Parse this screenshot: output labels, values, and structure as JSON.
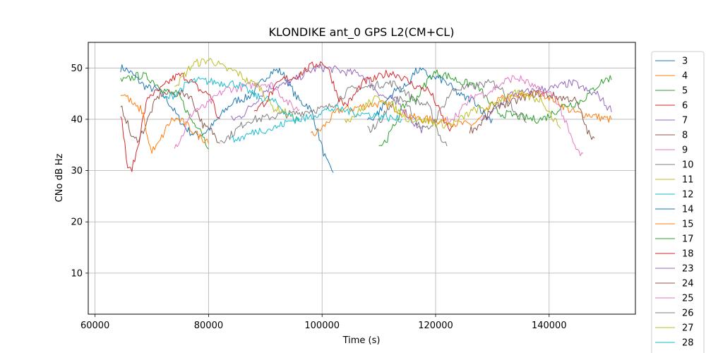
{
  "chart_data": {
    "type": "line",
    "title": "KLONDIKE ant_0 GPS L2(CM+CL)",
    "xlabel": "Time (s)",
    "ylabel": "CNo dB Hz",
    "xlim": [
      58800,
      155200
    ],
    "ylim": [
      2,
      55
    ],
    "xticks": [
      60000,
      80000,
      100000,
      120000,
      140000
    ],
    "yticks": [
      10,
      20,
      30,
      40,
      50
    ],
    "grid": true,
    "legend": "right-outside",
    "colors": [
      "#1f77b4",
      "#ff7f0e",
      "#2ca02c",
      "#d62728",
      "#9467bd",
      "#8c564b",
      "#e377c2",
      "#7f7f7f",
      "#bcbd22",
      "#17becf"
    ],
    "series": [
      {
        "name": "3",
        "x": [
          64500,
          70000,
          78000,
          86000,
          92000,
          97000,
          102000
        ],
        "y": [
          50,
          46,
          37,
          44,
          49.5,
          43,
          30
        ]
      },
      {
        "name": "4",
        "x": [
          98000,
          104000,
          110000,
          118000,
          126000,
          132000,
          138000,
          146000,
          151000
        ],
        "y": [
          37,
          42,
          43,
          40,
          39,
          44,
          45,
          41,
          40
        ]
      },
      {
        "name": "5",
        "x": [
          64500,
          68000,
          74000,
          78000,
          80000
        ],
        "y": [
          47.5,
          48.5,
          45,
          39,
          35
        ]
      },
      {
        "name": "6",
        "x": [
          64500,
          66000,
          70000,
          75000,
          80000,
          82000
        ],
        "y": [
          40,
          30,
          45,
          48.5,
          45,
          40
        ]
      },
      {
        "name": "7",
        "x": [
          84000,
          92000,
          100000,
          106000,
          112000,
          118000
        ],
        "y": [
          40,
          46.5,
          50,
          49,
          44,
          38
        ]
      },
      {
        "name": "8",
        "x": [
          64500,
          67000,
          72000,
          76000,
          80000,
          82000
        ],
        "y": [
          42,
          36,
          45,
          45,
          38,
          36
        ]
      },
      {
        "name": "9",
        "x": [
          74000,
          78000,
          84000,
          90000,
          96000
        ],
        "y": [
          35,
          42,
          46,
          47,
          42
        ]
      },
      {
        "name": "10",
        "x": [
          82000,
          88000,
          94000,
          100000,
          106000,
          112000,
          118000,
          122000
        ],
        "y": [
          36,
          40,
          41,
          42,
          46,
          47,
          43,
          35
        ]
      },
      {
        "name": "11",
        "x": [
          74000,
          78000,
          80000,
          84000,
          88000,
          92000,
          96000
        ],
        "y": [
          47,
          51,
          51.5,
          49.5,
          47,
          42,
          40
        ]
      },
      {
        "name": "12",
        "x": [
          72000,
          78000,
          84000,
          90000,
          96000
        ],
        "y": [
          44,
          47.5,
          47,
          44,
          40
        ]
      },
      {
        "name": "14",
        "x": [
          108000,
          114000,
          117000,
          120000,
          126000,
          130000
        ],
        "y": [
          40,
          46,
          49.5,
          48,
          44,
          40
        ]
      },
      {
        "name": "15",
        "x": [
          64500,
          68000,
          70000,
          74000,
          80000
        ],
        "y": [
          45,
          42,
          34,
          40,
          36
        ]
      },
      {
        "name": "17",
        "x": [
          110000,
          116000,
          120000,
          126000,
          132000,
          138000,
          144000,
          151000
        ],
        "y": [
          35,
          44,
          49,
          47,
          41,
          40,
          43,
          48
        ]
      },
      {
        "name": "18",
        "x": [
          88000,
          94000,
          100000,
          104000,
          108000,
          112000,
          118000,
          123000
        ],
        "y": [
          42,
          48,
          51,
          43,
          47.5,
          49,
          46,
          38
        ]
      },
      {
        "name": "23",
        "x": [
          128000,
          134000,
          140000,
          144000,
          148000,
          151000
        ],
        "y": [
          40,
          45,
          46,
          47,
          45,
          42
        ]
      },
      {
        "name": "24",
        "x": [
          126000,
          132000,
          138000,
          144000,
          148000
        ],
        "y": [
          38,
          43,
          45,
          44,
          36
        ]
      },
      {
        "name": "25",
        "x": [
          122000,
          128000,
          134000,
          140000,
          146000
        ],
        "y": [
          40,
          45,
          48,
          45,
          33
        ]
      },
      {
        "name": "26",
        "x": [
          108000,
          114000,
          118000,
          124000,
          130000,
          136000
        ],
        "y": [
          38,
          44,
          38,
          46,
          47,
          40
        ]
      },
      {
        "name": "27",
        "x": [
          104000,
          110000,
          116000,
          122000,
          128000,
          134000,
          138000,
          142000
        ],
        "y": [
          40,
          44,
          40,
          39,
          42,
          45,
          44,
          39
        ]
      },
      {
        "name": "28",
        "x": [
          84000,
          90000,
          96000,
          102000,
          108000,
          114000
        ],
        "y": [
          36,
          38,
          40,
          42,
          41,
          40
        ]
      }
    ]
  }
}
